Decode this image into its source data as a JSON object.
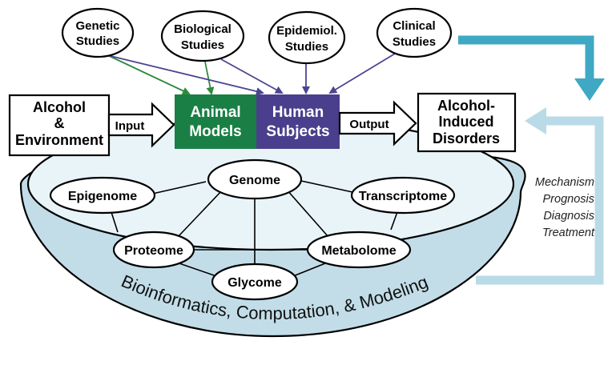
{
  "studies": [
    {
      "line1": "Genetic",
      "line2": "Studies"
    },
    {
      "line1": "Biological",
      "line2": "Studies"
    },
    {
      "line1": "Epidemiol.",
      "line2": "Studies"
    },
    {
      "line1": "Clinical",
      "line2": "Studies"
    }
  ],
  "input_box": {
    "line1": "Alcohol",
    "line2": "&",
    "line3": "Environment"
  },
  "input_label": "Input",
  "animal_models": {
    "line1": "Animal",
    "line2": "Models"
  },
  "human_subjects": {
    "line1": "Human",
    "line2": "Subjects"
  },
  "output_label": "Output",
  "output_box": {
    "line1": "Alcohol-",
    "line2": "Induced",
    "line3": "Disorders"
  },
  "omics": {
    "genome": "Genome",
    "epigenome": "Epigenome",
    "transcriptome": "Transcriptome",
    "proteome": "Proteome",
    "metabolome": "Metabolome",
    "glycome": "Glycome"
  },
  "bowl_label": "Bioinformatics, Computation, & Modeling",
  "side_labels": [
    "Mechanism",
    "Prognosis",
    "Diagnosis",
    "Treatment"
  ],
  "colors": {
    "animal": "#1a7f45",
    "human": "#4a3f8c",
    "green_arrow": "#2e8b3e",
    "purple_arrow": "#4b4590",
    "teal_arrow": "#3fa8c4",
    "light_teal": "#b9dbe7",
    "bowl_inner": "#e8f4f8",
    "bowl_outer": "#c2dde8"
  }
}
